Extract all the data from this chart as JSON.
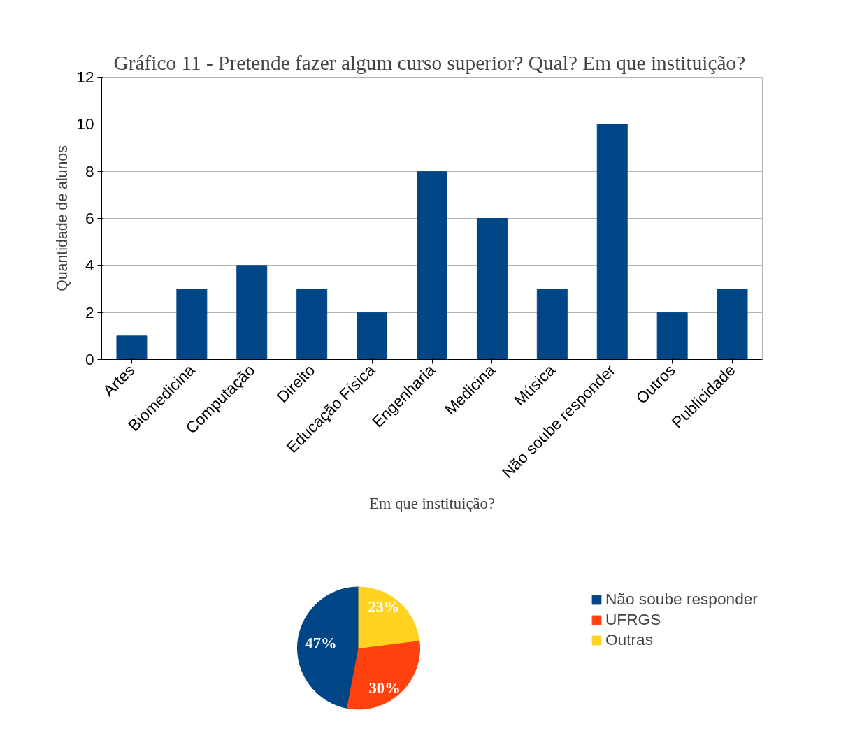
{
  "chart_data": [
    {
      "type": "bar",
      "title": "Gráfico 11 -  Pretende fazer algum curso superior? Qual? Em que instituição?",
      "ylabel": "Quantidade de alunos",
      "categories": [
        "Artes",
        "Biomedicina",
        "Computação",
        "Direito",
        "Educação Física",
        "Engenharia",
        "Medicina",
        "Música",
        "Não soube responder",
        "Outros",
        "Publicidade"
      ],
      "values": [
        1,
        3,
        4,
        3,
        2,
        8,
        6,
        3,
        10,
        2,
        3
      ],
      "color": "#004586",
      "ylim": [
        0,
        12
      ],
      "yticks": [
        0,
        2,
        4,
        6,
        8,
        10,
        12
      ],
      "grid": "y"
    },
    {
      "type": "pie",
      "title": "Em que instituição?",
      "categories": [
        "Não soube responder",
        "UFRGS",
        "Outras"
      ],
      "values": [
        47,
        30,
        23
      ],
      "colors": [
        "#004586",
        "#ff420e",
        "#ffd320"
      ],
      "value_labels": [
        "47%",
        "30%",
        "23%"
      ],
      "legend": "right"
    }
  ]
}
